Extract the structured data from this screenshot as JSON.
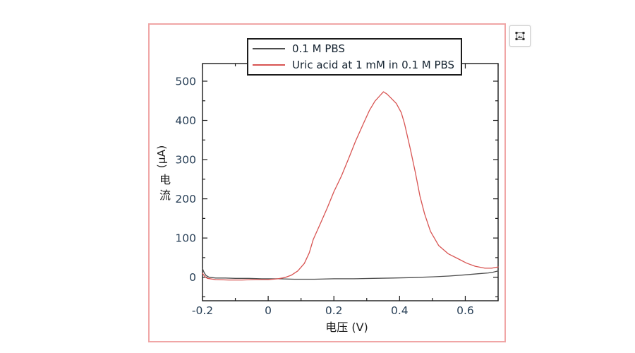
{
  "window": {
    "frame_border_color": "#f0a6a6",
    "background": "#ffffff"
  },
  "toolbar": {
    "export_button_icon": "image-select-icon"
  },
  "legend": {
    "entries": [
      {
        "label": "0.1 M PBS",
        "line_color": "#4d4d4d"
      },
      {
        "label": "Uric acid at 1 mM in 0.1 M PBS",
        "line_color": "#d85452"
      }
    ]
  },
  "chart_data": {
    "type": "line",
    "title": "",
    "xlabel": "电压  (V)",
    "ylabel": "电流 (μA)",
    "ylabel_unit": "(μA)",
    "ylabel_chars": [
      "电",
      "流"
    ],
    "xlim": [
      -0.2,
      0.7
    ],
    "ylim": [
      -60,
      545
    ],
    "grid": false,
    "legend_position": "top-center",
    "axis_color": "#1a1a1a",
    "tick_label_color": "#2a4158",
    "x_ticks": {
      "major": [
        -0.2,
        0,
        0.2,
        0.4,
        0.6
      ],
      "labels": [
        "-0.2",
        "0",
        "0.2",
        "0.4",
        "0.6"
      ],
      "minor": [
        -0.1,
        0.1,
        0.3,
        0.5,
        0.7
      ]
    },
    "y_ticks": {
      "major": [
        0,
        100,
        200,
        300,
        400,
        500
      ],
      "labels": [
        "0",
        "100",
        "200",
        "300",
        "400",
        "500"
      ],
      "minor": [
        -50,
        50,
        150,
        250,
        350,
        450
      ]
    },
    "series": [
      {
        "name": "0.1 M PBS",
        "color": "#4d4d4d",
        "points": [
          [
            -0.2,
            22
          ],
          [
            -0.195,
            12
          ],
          [
            -0.19,
            5
          ],
          [
            -0.18,
            0
          ],
          [
            -0.16,
            -2
          ],
          [
            -0.13,
            -2
          ],
          [
            -0.1,
            -3
          ],
          [
            -0.06,
            -3
          ],
          [
            -0.02,
            -4
          ],
          [
            0.03,
            -4
          ],
          [
            0.08,
            -5
          ],
          [
            0.14,
            -5
          ],
          [
            0.2,
            -4
          ],
          [
            0.26,
            -4
          ],
          [
            0.32,
            -3
          ],
          [
            0.38,
            -2
          ],
          [
            0.44,
            -1
          ],
          [
            0.5,
            1
          ],
          [
            0.55,
            3
          ],
          [
            0.6,
            6
          ],
          [
            0.64,
            9
          ],
          [
            0.67,
            11
          ],
          [
            0.685,
            13
          ],
          [
            0.7,
            16
          ]
        ]
      },
      {
        "name": "Uric acid at 1 mM in 0.1 M PBS",
        "color": "#d85452",
        "points": [
          [
            -0.2,
            10
          ],
          [
            -0.193,
            2
          ],
          [
            -0.185,
            -3
          ],
          [
            -0.16,
            -6
          ],
          [
            -0.12,
            -7
          ],
          [
            -0.08,
            -7
          ],
          [
            -0.04,
            -6
          ],
          [
            0.0,
            -6
          ],
          [
            0.03,
            -4
          ],
          [
            0.05,
            -1
          ],
          [
            0.07,
            5
          ],
          [
            0.09,
            16
          ],
          [
            0.11,
            35
          ],
          [
            0.125,
            62
          ],
          [
            0.137,
            96
          ],
          [
            0.16,
            139
          ],
          [
            0.18,
            177
          ],
          [
            0.2,
            218
          ],
          [
            0.223,
            258
          ],
          [
            0.245,
            303
          ],
          [
            0.266,
            347
          ],
          [
            0.29,
            392
          ],
          [
            0.308,
            425
          ],
          [
            0.325,
            449
          ],
          [
            0.341,
            464
          ],
          [
            0.351,
            473
          ],
          [
            0.362,
            467
          ],
          [
            0.375,
            456
          ],
          [
            0.39,
            443
          ],
          [
            0.405,
            420
          ],
          [
            0.415,
            392
          ],
          [
            0.433,
            326
          ],
          [
            0.448,
            267
          ],
          [
            0.462,
            207
          ],
          [
            0.476,
            162
          ],
          [
            0.494,
            117
          ],
          [
            0.519,
            81
          ],
          [
            0.548,
            60
          ],
          [
            0.576,
            48
          ],
          [
            0.604,
            36
          ],
          [
            0.63,
            28
          ],
          [
            0.66,
            23
          ],
          [
            0.68,
            23
          ],
          [
            0.7,
            26
          ]
        ]
      }
    ]
  }
}
